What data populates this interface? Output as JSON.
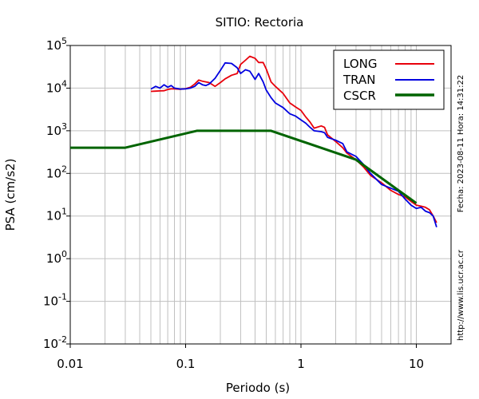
{
  "chart_data": {
    "type": "line",
    "title": "SITIO: Rectoria",
    "xlabel": "Periodo (s)",
    "ylabel": "PSA (cm/s2)",
    "xscale": "log",
    "yscale": "log",
    "xlim": [
      0.01,
      20
    ],
    "ylim": [
      0.01,
      100000
    ],
    "x_ticks": [
      {
        "value": 0.01,
        "label": "0.01"
      },
      {
        "value": 0.1,
        "label": "0.1"
      },
      {
        "value": 1,
        "label": "1"
      },
      {
        "value": 10,
        "label": "10"
      }
    ],
    "y_ticks": [
      {
        "value": 0.01,
        "base": "10",
        "exp": "-2"
      },
      {
        "value": 0.1,
        "base": "10",
        "exp": "-1"
      },
      {
        "value": 1,
        "base": "10",
        "exp": "0"
      },
      {
        "value": 10,
        "base": "10",
        "exp": "1"
      },
      {
        "value": 100,
        "base": "10",
        "exp": "2"
      },
      {
        "value": 1000,
        "base": "10",
        "exp": "3"
      },
      {
        "value": 10000,
        "base": "10",
        "exp": "4"
      },
      {
        "value": 100000,
        "base": "10",
        "exp": "5"
      }
    ],
    "grid": true,
    "legend_position": "top-right",
    "side_notes": [
      "Fecha: 2023-08-11 Hora: 14:31:22",
      "http://www.lis.ucr.ac.cr"
    ],
    "series": [
      {
        "name": "LONG",
        "color": "#e8000b",
        "x": [
          0.05,
          0.055,
          0.06,
          0.065,
          0.07,
          0.075,
          0.08,
          0.09,
          0.1,
          0.11,
          0.12,
          0.13,
          0.14,
          0.15,
          0.16,
          0.18,
          0.2,
          0.22,
          0.25,
          0.28,
          0.3,
          0.33,
          0.36,
          0.4,
          0.43,
          0.47,
          0.5,
          0.55,
          0.6,
          0.7,
          0.8,
          0.9,
          1.0,
          1.1,
          1.2,
          1.3,
          1.5,
          1.6,
          1.7,
          2.0,
          2.3,
          2.5,
          3.0,
          3.5,
          4.0,
          5.0,
          6.0,
          7.0,
          8.0,
          9.0,
          10.0,
          11.0,
          12.0,
          13.0,
          14.0,
          15.0
        ],
        "y": [
          8400,
          8500,
          8600,
          8700,
          9300,
          9600,
          9600,
          9400,
          9700,
          10500,
          12500,
          15500,
          14500,
          14000,
          13500,
          11000,
          13500,
          16500,
          20000,
          22000,
          36000,
          45000,
          56000,
          50000,
          40000,
          40000,
          28000,
          14000,
          11000,
          7500,
          4500,
          3600,
          3000,
          2100,
          1600,
          1150,
          1300,
          1200,
          800,
          560,
          400,
          300,
          210,
          140,
          90,
          60,
          40,
          32,
          28,
          22,
          18,
          17,
          16,
          14,
          10,
          7
        ]
      },
      {
        "name": "TRAN",
        "color": "#0000e0",
        "x": [
          0.05,
          0.055,
          0.06,
          0.065,
          0.07,
          0.075,
          0.08,
          0.09,
          0.1,
          0.11,
          0.12,
          0.13,
          0.14,
          0.15,
          0.16,
          0.18,
          0.2,
          0.22,
          0.25,
          0.28,
          0.3,
          0.33,
          0.36,
          0.4,
          0.43,
          0.47,
          0.5,
          0.55,
          0.6,
          0.7,
          0.8,
          0.9,
          1.0,
          1.1,
          1.2,
          1.3,
          1.5,
          1.6,
          1.7,
          2.0,
          2.3,
          2.5,
          3.0,
          3.5,
          4.0,
          5.0,
          6.0,
          7.0,
          8.0,
          9.0,
          10.0,
          11.0,
          12.0,
          13.0,
          14.0,
          15.0
        ],
        "y": [
          9500,
          11000,
          10000,
          12000,
          10500,
          11500,
          10000,
          9500,
          9600,
          10000,
          11000,
          13500,
          12000,
          11500,
          12500,
          17000,
          26000,
          39000,
          38000,
          30000,
          22000,
          27000,
          25000,
          16000,
          22000,
          14000,
          9000,
          6000,
          4500,
          3500,
          2500,
          2200,
          1800,
          1500,
          1200,
          1000,
          950,
          900,
          700,
          600,
          500,
          320,
          250,
          160,
          100,
          55,
          45,
          38,
          25,
          18,
          15,
          16,
          13,
          12,
          10,
          5.5
        ]
      },
      {
        "name": "CSCR",
        "color": "#006400",
        "x": [
          0.01,
          0.03,
          0.125,
          0.55,
          3.0,
          10.0
        ],
        "y": [
          400,
          400,
          1000,
          1000,
          210,
          20
        ]
      }
    ]
  }
}
